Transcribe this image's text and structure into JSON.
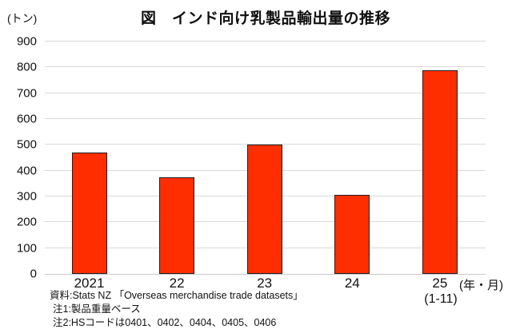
{
  "title": "図　インド向け乳製品輸出量の推移",
  "y_axis": {
    "unit_label": "(トン)",
    "tick_labels": [
      "900",
      "800",
      "700",
      "600",
      "500",
      "400",
      "300",
      "200",
      "100",
      "0"
    ]
  },
  "x_axis": {
    "unit_label": "(年・月)",
    "sub_label": "(1-11)"
  },
  "notes": {
    "source": "資料:Stats NZ 「Overseas merchandise trade datasets」",
    "note1": "注1:製品重量ベース",
    "note2": "注2:HSコードは0401、0402、0404、0405、0406"
  },
  "chart_data": {
    "type": "bar",
    "title": "図　インド向け乳製品輸出量の推移",
    "categories": [
      "2021",
      "22",
      "23",
      "24",
      "25"
    ],
    "values": [
      470,
      375,
      500,
      305,
      790
    ],
    "last_category_sub_label": "(1-11)",
    "xlabel": "(年・月)",
    "ylabel": "(トン)",
    "ylim": [
      0,
      900
    ],
    "ytick_interval": 100,
    "grid": true,
    "legend": "none",
    "colors": {
      "bar_fill": "#ff2e00",
      "bar_border": "#1f1f1f",
      "gridline": "#d9d9d9",
      "text": "#111111"
    }
  }
}
